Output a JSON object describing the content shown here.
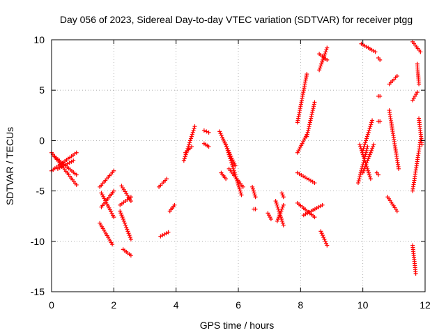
{
  "chart_data": {
    "type": "scatter",
    "title": "Day 056 of 2023, Sidereal Day-to-day VTEC variation (SDTVAR) for receiver ptgg",
    "xlabel": "GPS time / hours",
    "ylabel": "SDTVAR / TECUs",
    "xlim": [
      0,
      12
    ],
    "ylim": [
      -15,
      10
    ],
    "xticks": [
      "0",
      "2",
      "4",
      "6",
      "8",
      "10",
      "12"
    ],
    "yticks": [
      "10",
      "5",
      "0",
      "-5",
      "-10",
      "-15"
    ],
    "grid": true,
    "marker": "plus",
    "color": "#ff0000",
    "segments": [
      {
        "x": [
          0.0,
          0.8
        ],
        "y": [
          -1.2,
          -4.4
        ]
      },
      {
        "x": [
          0.0,
          0.8
        ],
        "y": [
          -3.0,
          -1.2
        ]
      },
      {
        "x": [
          0.1,
          0.8
        ],
        "y": [
          -1.6,
          -3.4
        ]
      },
      {
        "x": [
          0.2,
          0.7
        ],
        "y": [
          -2.8,
          -2.0
        ]
      },
      {
        "x": [
          1.55,
          2.0
        ],
        "y": [
          -4.6,
          -3.0
        ]
      },
      {
        "x": [
          1.6,
          2.0
        ],
        "y": [
          -6.6,
          -5.0
        ]
      },
      {
        "x": [
          1.6,
          2.0
        ],
        "y": [
          -5.2,
          -7.6
        ]
      },
      {
        "x": [
          1.55,
          1.95
        ],
        "y": [
          -8.2,
          -10.3
        ]
      },
      {
        "x": [
          2.25,
          2.55
        ],
        "y": [
          -4.5,
          -6.0
        ]
      },
      {
        "x": [
          2.2,
          2.55
        ],
        "y": [
          -6.4,
          -5.6
        ]
      },
      {
        "x": [
          2.2,
          2.55
        ],
        "y": [
          -7.0,
          -9.8
        ]
      },
      {
        "x": [
          2.3,
          2.55
        ],
        "y": [
          -10.8,
          -11.4
        ]
      },
      {
        "x": [
          3.45,
          3.7
        ],
        "y": [
          -4.6,
          -3.8
        ]
      },
      {
        "x": [
          3.5,
          3.75
        ],
        "y": [
          -9.5,
          -9.1
        ]
      },
      {
        "x": [
          3.8,
          3.95
        ],
        "y": [
          -7.0,
          -6.4
        ]
      },
      {
        "x": [
          4.25,
          4.6
        ],
        "y": [
          -2.0,
          1.4
        ]
      },
      {
        "x": [
          4.3,
          4.5
        ],
        "y": [
          -1.2,
          -0.6
        ]
      },
      {
        "x": [
          4.9,
          5.05
        ],
        "y": [
          1.0,
          0.8
        ]
      },
      {
        "x": [
          4.9,
          5.05
        ],
        "y": [
          -0.3,
          -0.6
        ]
      },
      {
        "x": [
          5.4,
          5.9
        ],
        "y": [
          0.9,
          -2.5
        ]
      },
      {
        "x": [
          5.6,
          6.1
        ],
        "y": [
          -0.4,
          -5.4
        ]
      },
      {
        "x": [
          5.7,
          6.15
        ],
        "y": [
          -2.8,
          -4.6
        ]
      },
      {
        "x": [
          5.45,
          5.6
        ],
        "y": [
          -3.2,
          -3.8
        ]
      },
      {
        "x": [
          6.45,
          6.55
        ],
        "y": [
          -4.6,
          -5.6
        ]
      },
      {
        "x": [
          6.5,
          6.55
        ],
        "y": [
          -6.8,
          -6.8
        ]
      },
      {
        "x": [
          6.95,
          7.05
        ],
        "y": [
          -7.2,
          -7.8
        ]
      },
      {
        "x": [
          7.2,
          7.45
        ],
        "y": [
          -6.0,
          -8.4
        ]
      },
      {
        "x": [
          7.25,
          7.45
        ],
        "y": [
          -8.0,
          -6.4
        ]
      },
      {
        "x": [
          7.4,
          7.45
        ],
        "y": [
          -5.2,
          -5.6
        ]
      },
      {
        "x": [
          7.9,
          8.2
        ],
        "y": [
          1.8,
          6.6
        ]
      },
      {
        "x": [
          7.9,
          8.2
        ],
        "y": [
          -1.2,
          0.6
        ]
      },
      {
        "x": [
          8.2,
          8.45
        ],
        "y": [
          0.4,
          3.8
        ]
      },
      {
        "x": [
          7.9,
          8.45
        ],
        "y": [
          -3.2,
          -4.2
        ]
      },
      {
        "x": [
          7.9,
          8.45
        ],
        "y": [
          -6.2,
          -7.6
        ]
      },
      {
        "x": [
          8.1,
          8.7
        ],
        "y": [
          -7.4,
          -6.4
        ]
      },
      {
        "x": [
          8.6,
          8.85
        ],
        "y": [
          7.0,
          9.2
        ]
      },
      {
        "x": [
          8.6,
          8.85
        ],
        "y": [
          8.6,
          8.0
        ]
      },
      {
        "x": [
          8.65,
          8.85
        ],
        "y": [
          -9.0,
          -10.4
        ]
      },
      {
        "x": [
          9.85,
          10.15
        ],
        "y": [
          -4.2,
          -0.6
        ]
      },
      {
        "x": [
          9.9,
          10.25
        ],
        "y": [
          -0.4,
          -3.8
        ]
      },
      {
        "x": [
          10.0,
          10.3
        ],
        "y": [
          -1.0,
          2.0
        ]
      },
      {
        "x": [
          10.0,
          10.35
        ],
        "y": [
          -3.2,
          -0.4
        ]
      },
      {
        "x": [
          9.95,
          10.4
        ],
        "y": [
          9.6,
          8.8
        ]
      },
      {
        "x": [
          10.5,
          10.55
        ],
        "y": [
          8.2,
          8.0
        ]
      },
      {
        "x": [
          10.5,
          10.55
        ],
        "y": [
          4.4,
          4.4
        ]
      },
      {
        "x": [
          10.5,
          10.55
        ],
        "y": [
          1.9,
          1.9
        ]
      },
      {
        "x": [
          10.45,
          10.5
        ],
        "y": [
          -3.2,
          -3.4
        ]
      },
      {
        "x": [
          10.85,
          11.1
        ],
        "y": [
          5.6,
          6.4
        ]
      },
      {
        "x": [
          10.85,
          11.15
        ],
        "y": [
          3.0,
          -2.8
        ]
      },
      {
        "x": [
          10.8,
          11.1
        ],
        "y": [
          -5.6,
          -7.0
        ]
      },
      {
        "x": [
          11.6,
          11.85
        ],
        "y": [
          9.8,
          8.8
        ]
      },
      {
        "x": [
          11.6,
          11.75
        ],
        "y": [
          4.0,
          4.8
        ]
      },
      {
        "x": [
          11.75,
          11.8
        ],
        "y": [
          7.6,
          5.6
        ]
      },
      {
        "x": [
          11.6,
          11.85
        ],
        "y": [
          -5.0,
          0.0
        ]
      },
      {
        "x": [
          11.8,
          11.9
        ],
        "y": [
          2.2,
          -0.4
        ]
      },
      {
        "x": [
          11.6,
          11.7
        ],
        "y": [
          -10.4,
          -13.2
        ]
      }
    ]
  }
}
